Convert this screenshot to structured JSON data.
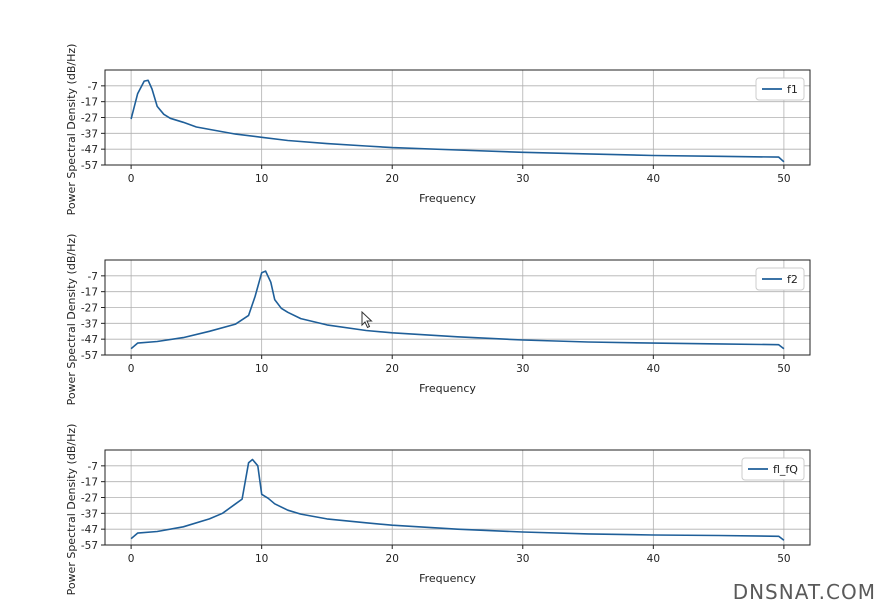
{
  "chart_data": [
    {
      "type": "line",
      "xlabel": "Frequency",
      "ylabel": "Power Spectral Density (dB/Hz)",
      "xlim": [
        -2,
        52
      ],
      "ylim": [
        -57,
        3
      ],
      "xticks": [
        0,
        10,
        20,
        30,
        40,
        50
      ],
      "yticks": [
        -57,
        -47,
        -37,
        -27,
        -17,
        -7
      ],
      "grid": true,
      "legend_position": "top-right",
      "series": [
        {
          "name": "f1",
          "x": [
            0,
            0.5,
            1,
            1.3,
            1.6,
            2,
            2.5,
            3,
            4,
            5,
            6,
            8,
            10,
            12,
            15,
            18,
            20,
            25,
            30,
            35,
            40,
            45,
            49.6,
            50
          ],
          "y": [
            -28,
            -12,
            -4,
            -3.5,
            -9,
            -20,
            -25,
            -27.5,
            -30,
            -33,
            -34.5,
            -37.5,
            -39.5,
            -41.5,
            -43.5,
            -45,
            -46,
            -47.5,
            -49,
            -50,
            -51,
            -51.5,
            -52,
            -55
          ]
        }
      ]
    },
    {
      "type": "line",
      "xlabel": "Frequency",
      "ylabel": "Power Spectral Density (dB/Hz)",
      "xlim": [
        -2,
        52
      ],
      "ylim": [
        -57,
        3
      ],
      "xticks": [
        0,
        10,
        20,
        30,
        40,
        50
      ],
      "yticks": [
        -57,
        -47,
        -37,
        -27,
        -17,
        -7
      ],
      "grid": true,
      "legend_position": "top-right",
      "series": [
        {
          "name": "f2",
          "x": [
            0,
            0.5,
            2,
            4,
            6,
            8,
            9,
            9.5,
            10,
            10.3,
            10.7,
            11,
            11.5,
            12,
            13,
            15,
            18,
            20,
            25,
            30,
            35,
            40,
            45,
            49.6,
            50
          ],
          "y": [
            -53,
            -49.5,
            -48.5,
            -46,
            -42,
            -37.5,
            -32,
            -20,
            -5,
            -4,
            -11,
            -22,
            -27.5,
            -30,
            -34,
            -38,
            -41.5,
            -43,
            -45.5,
            -47.5,
            -48.8,
            -49.5,
            -50,
            -50.5,
            -53
          ]
        }
      ]
    },
    {
      "type": "line",
      "xlabel": "Frequency",
      "ylabel": "Power Spectral Density (dB/Hz)",
      "xlim": [
        -2,
        52
      ],
      "ylim": [
        -57,
        3
      ],
      "xticks": [
        0,
        10,
        20,
        30,
        40,
        50
      ],
      "yticks": [
        -57,
        -47,
        -37,
        -27,
        -17,
        -7
      ],
      "grid": true,
      "legend_position": "top-right",
      "series": [
        {
          "name": "fl_fQ",
          "x": [
            0,
            0.5,
            2,
            4,
            6,
            7,
            8,
            8.5,
            9,
            9.3,
            9.7,
            10,
            10.5,
            11,
            12,
            13,
            15,
            18,
            20,
            25,
            30,
            35,
            40,
            45,
            49.6,
            50
          ],
          "y": [
            -53,
            -49.5,
            -48.5,
            -45.5,
            -40.5,
            -37,
            -31,
            -28,
            -5,
            -3,
            -7,
            -25,
            -27.5,
            -31,
            -35,
            -37.5,
            -40.5,
            -43,
            -44.5,
            -47,
            -48.8,
            -50,
            -50.7,
            -51,
            -51.5,
            -54
          ]
        }
      ]
    }
  ],
  "watermark": "DNSNAT.COM"
}
